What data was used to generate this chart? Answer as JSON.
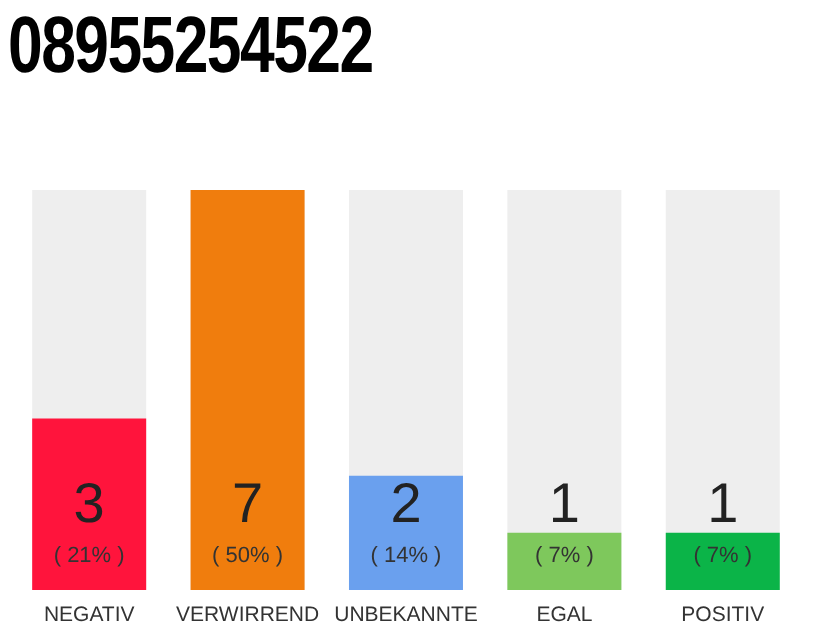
{
  "chart_data": {
    "type": "bar",
    "title": "08955254522",
    "categories": [
      "NEGATIV",
      "VERWIRREND",
      "UNBEKANNTE",
      "EGAL",
      "POSITIV"
    ],
    "values": [
      3,
      7,
      2,
      1,
      1
    ],
    "colors": [
      "#ff143c",
      "#f07d0d",
      "#6aa0ee",
      "#7ec85c",
      "#0bb448"
    ],
    "annotations": [
      "( 21% )",
      "( 50% )",
      "( 14% )",
      "( 7% )",
      "( 7% )"
    ],
    "data_labels": true
  }
}
